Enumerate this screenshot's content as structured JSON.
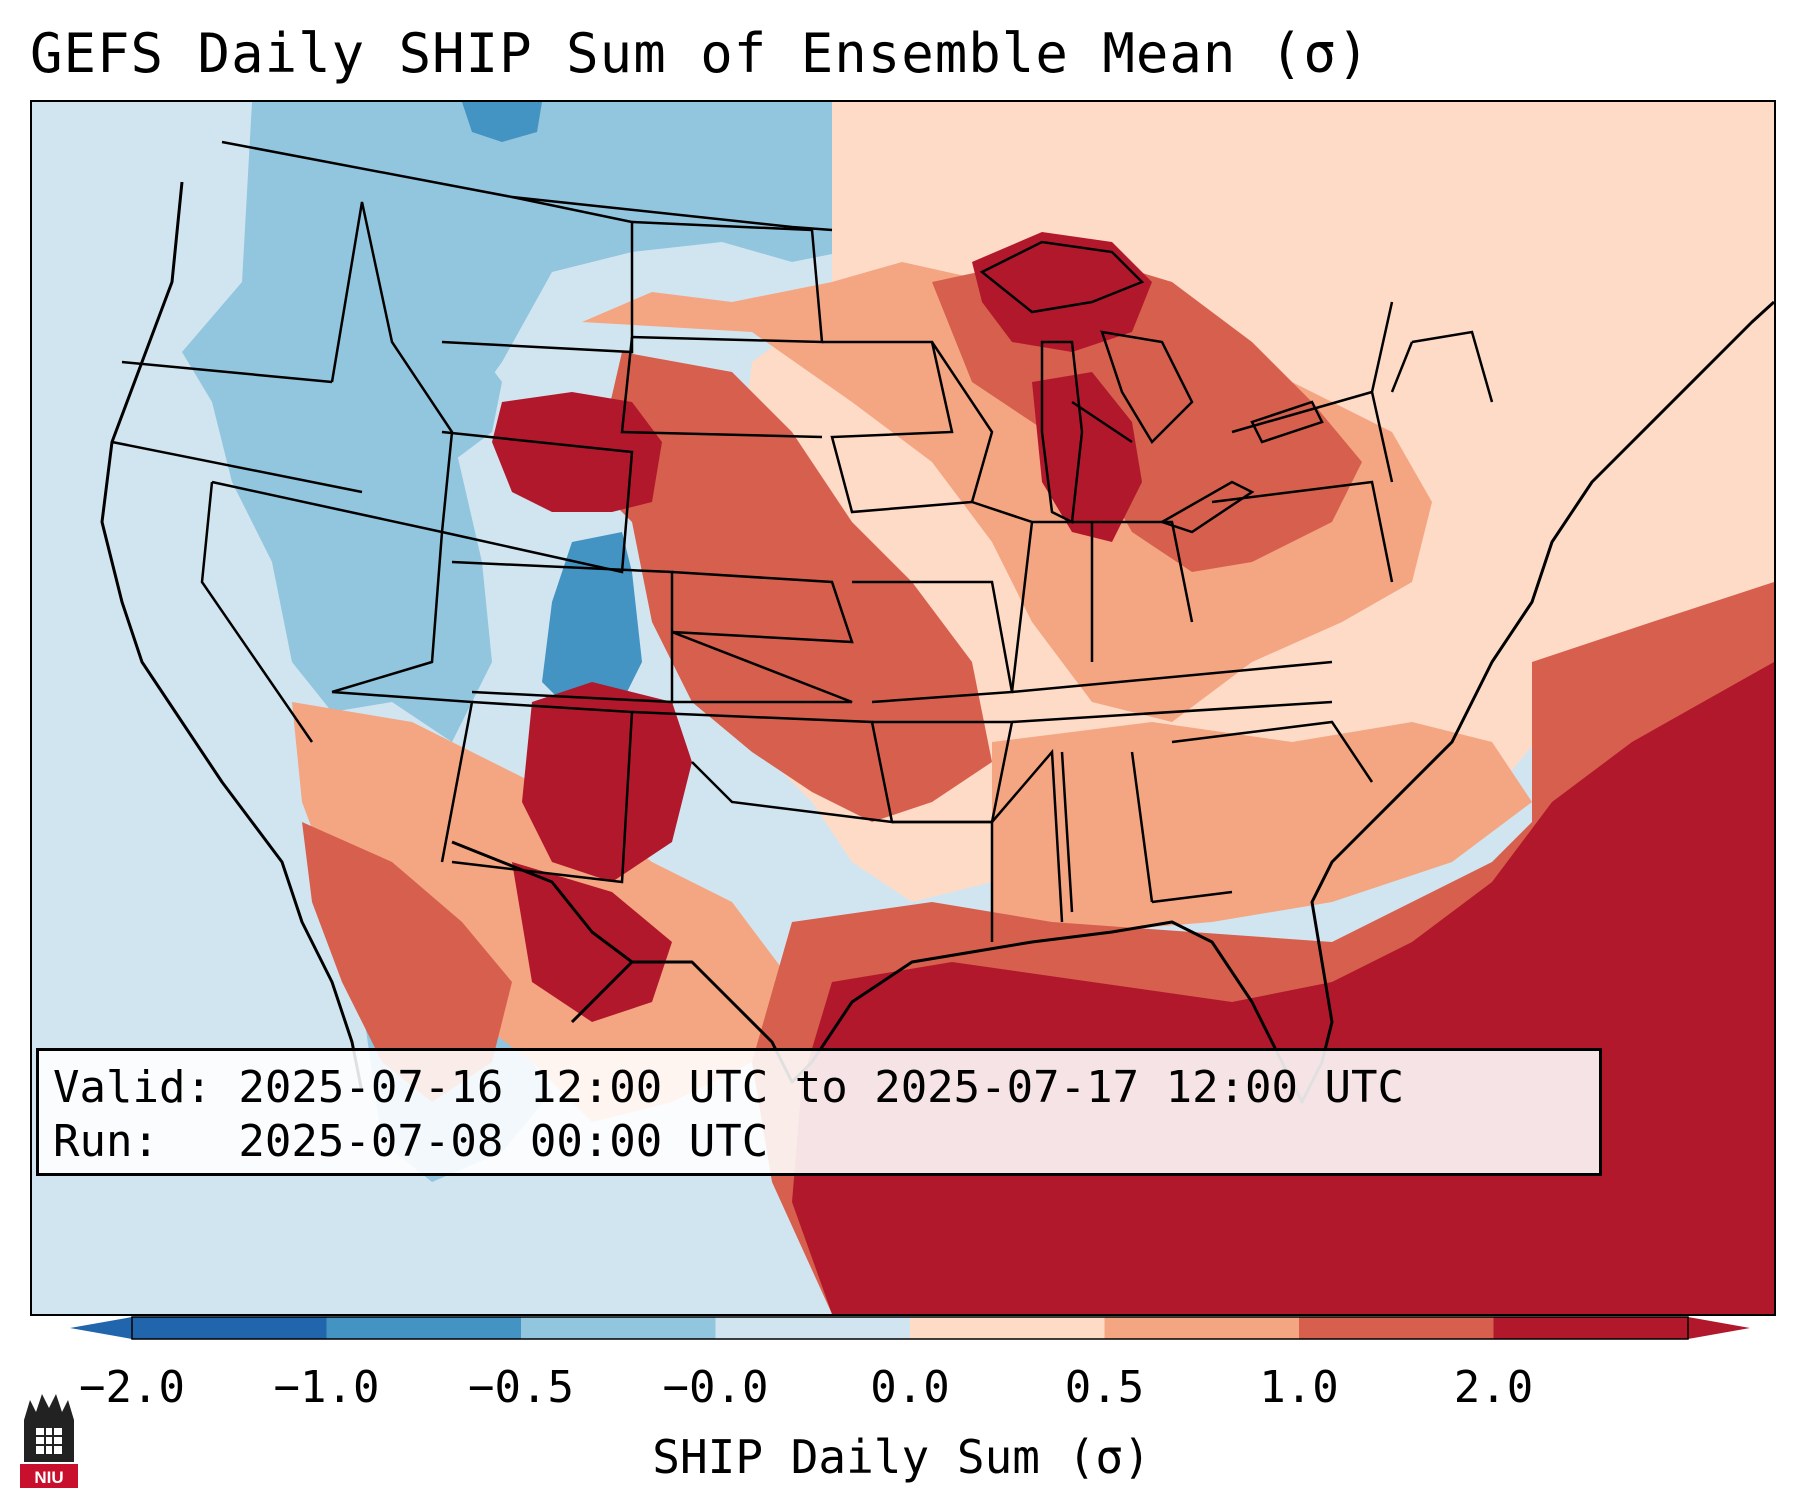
{
  "title": "GEFS Daily SHIP Sum of Ensemble Mean (σ)",
  "info": {
    "valid_line": "Valid: 2025-07-16 12:00 UTC to 2025-07-17 12:00 UTC",
    "run_line": "Run:   2025-07-08 00:00 UTC"
  },
  "colorbar": {
    "label": "SHIP Daily Sum (σ)",
    "tick_labels": [
      "−2.0",
      "−1.0",
      "−0.5",
      "−0.0",
      "0.0",
      "0.5",
      "1.0",
      "2.0"
    ],
    "colors": [
      "#2166ac",
      "#4393c3",
      "#92c5de",
      "#d1e5f0",
      "#fddbc7",
      "#f4a582",
      "#d6604d",
      "#b2182b"
    ],
    "extend": "both"
  },
  "map": {
    "projection": "Lambert conformal, CONUS",
    "ocean_color": "#d1e5f0",
    "border_color": "#000000"
  },
  "logo": {
    "text": "NIU"
  }
}
